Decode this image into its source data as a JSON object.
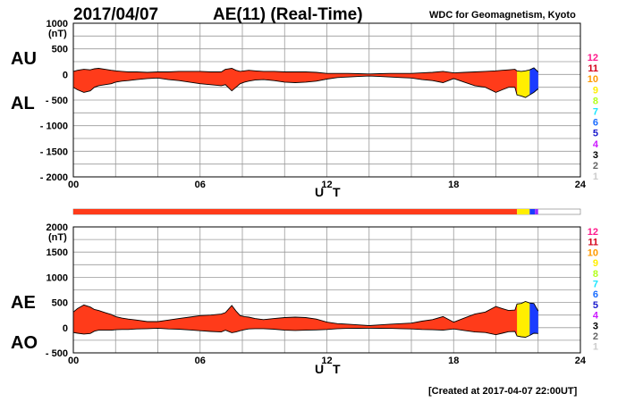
{
  "header": {
    "date": "2017/04/07",
    "title": "AE(11) (Real-Time)",
    "org": "WDC for Geomagnetism, Kyoto"
  },
  "footer": {
    "created": "[Created at 2017-04-07 22:00UT]"
  },
  "colors": {
    "primary_fill": "#ff3b1a",
    "yellow_fill": "#ffee00",
    "blue_fill": "#1a3cff",
    "violet_fill": "#9a2cff"
  },
  "legend": {
    "items": [
      {
        "label": "12",
        "color": "#ff1a8c"
      },
      {
        "label": "11",
        "color": "#d4001a"
      },
      {
        "label": "10",
        "color": "#ff9a00"
      },
      {
        "label": "9",
        "color": "#ffee00"
      },
      {
        "label": "8",
        "color": "#b3ff1a"
      },
      {
        "label": "7",
        "color": "#1ae6ff"
      },
      {
        "label": "6",
        "color": "#1a6cff"
      },
      {
        "label": "5",
        "color": "#1a1acc"
      },
      {
        "label": "4",
        "color": "#cc1aff"
      },
      {
        "label": "3",
        "color": "#000000"
      },
      {
        "label": "2",
        "color": "#666666"
      },
      {
        "label": "1",
        "color": "#cccccc"
      }
    ]
  },
  "station_bar": {
    "segments": [
      {
        "start": 0,
        "end": 21.0,
        "color": "#ff3b1a"
      },
      {
        "start": 21.0,
        "end": 21.6,
        "color": "#ffee00"
      },
      {
        "start": 21.6,
        "end": 21.85,
        "color": "#1a3cff"
      },
      {
        "start": 21.85,
        "end": 22.0,
        "color": "#9a2cff"
      }
    ]
  },
  "chart_data": [
    {
      "type": "area",
      "series_labels": [
        "AU",
        "AL"
      ],
      "unit": "(nT)",
      "xlabel": "U T",
      "x_ticks": [
        "00",
        "06",
        "12",
        "18",
        "24"
      ],
      "x_range": [
        0,
        24
      ],
      "y_ticks": [
        "1000",
        "500",
        "0",
        "- 500",
        "- 1000",
        "- 1500",
        "- 2000"
      ],
      "y_range": [
        -2000,
        1000
      ],
      "grid": true,
      "x": [
        0,
        0.2,
        0.5,
        0.8,
        1.0,
        1.2,
        1.5,
        1.8,
        2.0,
        2.3,
        2.6,
        3.0,
        3.5,
        4.0,
        4.5,
        5.0,
        5.5,
        6.0,
        6.5,
        7.0,
        7.2,
        7.5,
        7.7,
        7.9,
        8.1,
        8.3,
        8.6,
        9.0,
        9.5,
        10.0,
        10.5,
        11.0,
        11.5,
        12.0,
        12.5,
        13.0,
        13.5,
        14.0,
        14.5,
        15.0,
        15.5,
        16.0,
        16.5,
        17.0,
        17.5,
        18.0,
        18.5,
        19.0,
        19.5,
        20.0,
        20.3,
        20.6,
        20.9,
        21.0,
        21.2,
        21.4,
        21.6,
        21.8,
        22.0
      ],
      "au": [
        60,
        80,
        100,
        90,
        110,
        120,
        100,
        80,
        70,
        60,
        50,
        50,
        40,
        50,
        50,
        60,
        60,
        60,
        50,
        50,
        100,
        120,
        80,
        60,
        70,
        80,
        70,
        60,
        60,
        50,
        50,
        50,
        40,
        20,
        20,
        20,
        15,
        10,
        15,
        20,
        20,
        20,
        30,
        40,
        60,
        30,
        40,
        50,
        60,
        70,
        80,
        90,
        100,
        70,
        60,
        70,
        90,
        130,
        50
      ],
      "al": [
        -250,
        -300,
        -350,
        -320,
        -250,
        -220,
        -200,
        -180,
        -150,
        -130,
        -120,
        -100,
        -80,
        -70,
        -100,
        -120,
        -150,
        -180,
        -200,
        -220,
        -200,
        -320,
        -250,
        -180,
        -150,
        -130,
        -110,
        -100,
        -120,
        -150,
        -160,
        -150,
        -130,
        -90,
        -60,
        -50,
        -40,
        -30,
        -40,
        -50,
        -60,
        -70,
        -100,
        -120,
        -160,
        -80,
        -150,
        -220,
        -250,
        -350,
        -300,
        -250,
        -250,
        -400,
        -420,
        -450,
        -400,
        -350,
        -280
      ]
    },
    {
      "type": "area",
      "series_labels": [
        "AE",
        "AO"
      ],
      "unit": "(nT)",
      "xlabel": "U T",
      "x_ticks": [
        "00",
        "06",
        "12",
        "18",
        "24"
      ],
      "x_range": [
        0,
        24
      ],
      "y_ticks": [
        "2000",
        "1500",
        "1000",
        "500",
        "0",
        "- 500"
      ],
      "y_range": [
        -500,
        2000
      ],
      "grid": true,
      "x": [
        0,
        0.2,
        0.5,
        0.8,
        1.0,
        1.2,
        1.5,
        1.8,
        2.0,
        2.3,
        2.6,
        3.0,
        3.5,
        4.0,
        4.5,
        5.0,
        5.5,
        6.0,
        6.5,
        7.0,
        7.2,
        7.5,
        7.7,
        7.9,
        8.1,
        8.3,
        8.6,
        9.0,
        9.5,
        10.0,
        10.5,
        11.0,
        11.5,
        12.0,
        12.5,
        13.0,
        13.5,
        14.0,
        14.5,
        15.0,
        15.5,
        16.0,
        16.5,
        17.0,
        17.5,
        18.0,
        18.5,
        19.0,
        19.5,
        20.0,
        20.3,
        20.6,
        20.9,
        21.0,
        21.2,
        21.4,
        21.6,
        21.8,
        22.0
      ],
      "ae": [
        310,
        380,
        450,
        410,
        360,
        340,
        300,
        260,
        220,
        190,
        170,
        150,
        120,
        120,
        150,
        180,
        210,
        240,
        250,
        270,
        300,
        440,
        330,
        240,
        220,
        210,
        180,
        160,
        180,
        200,
        210,
        200,
        170,
        110,
        80,
        70,
        55,
        40,
        55,
        70,
        80,
        90,
        130,
        160,
        220,
        110,
        190,
        270,
        310,
        420,
        380,
        340,
        350,
        470,
        480,
        520,
        490,
        480,
        330
      ],
      "ao": [
        -95,
        -110,
        -125,
        -115,
        -70,
        -50,
        -50,
        -50,
        -40,
        -35,
        -35,
        -25,
        -20,
        -10,
        -25,
        -30,
        -45,
        -60,
        -75,
        -85,
        -50,
        -100,
        -85,
        -60,
        -40,
        -25,
        -20,
        -20,
        -30,
        -50,
        -55,
        -50,
        -45,
        -35,
        -20,
        -15,
        -12,
        -10,
        -12,
        -15,
        -20,
        -25,
        -35,
        -40,
        -50,
        -25,
        -55,
        -85,
        -95,
        -140,
        -110,
        -80,
        -75,
        -165,
        -180,
        -190,
        -155,
        -110,
        -115
      ]
    }
  ]
}
